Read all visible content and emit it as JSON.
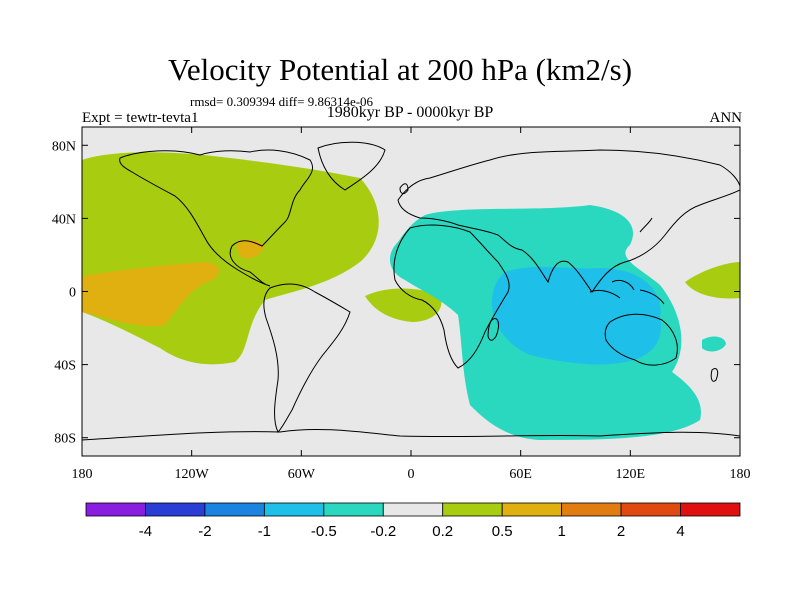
{
  "title": "Velocity Potential at 200 hPa (km2/s)",
  "stats": "rmsd= 0.309394 diff= 9.86314e-06",
  "left_label": "Expt = tewtr-tevta1",
  "center_label": "1980kyr BP - 0000kyr BP",
  "right_label": "ANN",
  "map": {
    "projection": "cylindrical equidistant",
    "lon_range": [
      -180,
      180
    ],
    "lat_range": [
      -90,
      90
    ],
    "y_tick_labels": [
      "80N",
      "40N",
      "0",
      "40S",
      "80S"
    ],
    "y_tick_values": [
      80,
      40,
      0,
      -40,
      -80
    ],
    "x_tick_labels": [
      "180",
      "120W",
      "60W",
      "0",
      "60E",
      "120E",
      "180"
    ],
    "x_tick_values": [
      -180,
      -120,
      -60,
      0,
      60,
      120,
      180
    ]
  },
  "colorbar": {
    "labels": [
      "-4",
      "-2",
      "-1",
      "-0.5",
      "-0.2",
      "0.2",
      "0.5",
      "1",
      "2",
      "4"
    ],
    "colors": [
      "#8a1ee0",
      "#2a3ed6",
      "#1a84e0",
      "#1ec0ea",
      "#2ad8c0",
      "#e8e8e8",
      "#a8cc10",
      "#e0b010",
      "#e07c10",
      "#e04a10",
      "#e01010"
    ]
  },
  "colors": {
    "ocean_land_background": "#e8e8e8",
    "coastline": "#000000"
  }
}
